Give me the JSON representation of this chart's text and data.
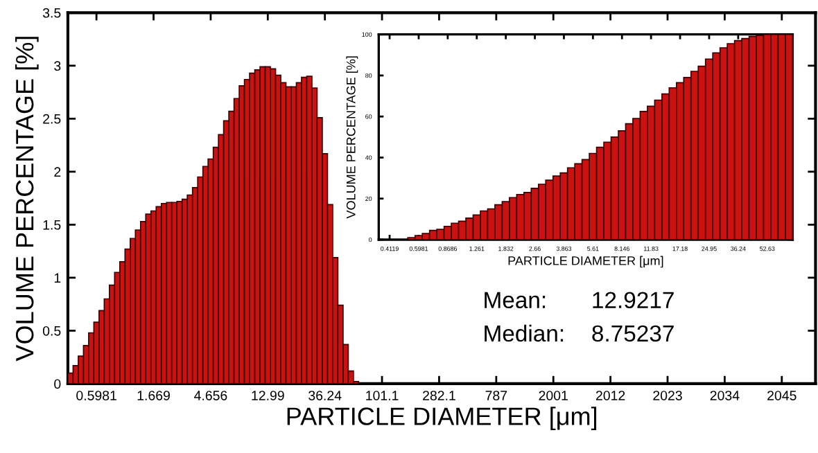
{
  "chart_data": [
    {
      "type": "bar",
      "xlabel": "PARTICLE DIAMETER [μm]",
      "ylabel": "VOLUME PERCENTAGE [%]",
      "color": "#cc1111",
      "ylim": [
        0,
        3.5
      ],
      "yticks": [
        0,
        0.5,
        1,
        1.5,
        2,
        2.5,
        3,
        3.5
      ],
      "grid": false,
      "categories": [
        null,
        null,
        null,
        null,
        null,
        "0.5981",
        null,
        null,
        null,
        null,
        null,
        null,
        null,
        null,
        null,
        null,
        "1.669",
        null,
        null,
        null,
        null,
        null,
        null,
        null,
        null,
        null,
        null,
        "4.656",
        null,
        null,
        null,
        null,
        null,
        null,
        null,
        null,
        null,
        null,
        "12.99",
        null,
        null,
        null,
        null,
        null,
        null,
        null,
        null,
        null,
        null,
        "36.24",
        null,
        null,
        null,
        null,
        null,
        null,
        null,
        null,
        null,
        null,
        "101.1",
        null,
        null,
        null,
        null,
        null,
        null,
        null,
        null,
        null,
        null,
        "282.1",
        null,
        null,
        null,
        null,
        null,
        null,
        null,
        null,
        null,
        null,
        "787",
        null,
        null,
        null,
        null,
        null,
        null,
        null,
        null,
        null,
        null,
        "2001",
        null,
        null,
        null,
        null,
        null,
        null,
        null,
        null,
        null,
        null,
        "2012",
        null,
        null,
        null,
        null,
        null,
        null,
        null,
        null,
        null,
        null,
        "2023",
        null,
        null,
        null,
        null,
        null,
        null,
        null,
        null,
        null,
        null,
        "2034",
        null,
        null,
        null,
        null,
        null,
        null,
        null,
        null,
        null,
        null,
        "2045",
        null,
        null,
        null,
        null,
        null,
        null
      ],
      "values": [
        0.1,
        0.17,
        0.26,
        0.36,
        0.48,
        0.58,
        0.69,
        0.8,
        0.93,
        1.05,
        1.15,
        1.27,
        1.37,
        1.45,
        1.53,
        1.6,
        1.63,
        1.67,
        1.7,
        1.71,
        1.71,
        1.72,
        1.74,
        1.78,
        1.85,
        1.95,
        2.05,
        2.12,
        2.23,
        2.35,
        2.48,
        2.57,
        2.69,
        2.81,
        2.87,
        2.93,
        2.96,
        2.99,
        2.99,
        2.97,
        2.91,
        2.84,
        2.8,
        2.8,
        2.84,
        2.89,
        2.9,
        2.79,
        2.51,
        2.17,
        1.69,
        1.19,
        0.74,
        0.37,
        0.12,
        0.02,
        0,
        0,
        0,
        0,
        0,
        0,
        0,
        0,
        0,
        0,
        0,
        0,
        0,
        0,
        0,
        0,
        0,
        0,
        0,
        0,
        0,
        0,
        0,
        0,
        0,
        0,
        0,
        0,
        0,
        0,
        0,
        0,
        0,
        0,
        0,
        0,
        0,
        0,
        0,
        0,
        0,
        0,
        0,
        0,
        0,
        0,
        0,
        0,
        0,
        0,
        0,
        0,
        0,
        0,
        0,
        0,
        0,
        0,
        0,
        0,
        0,
        0,
        0,
        0,
        0,
        0,
        0,
        0,
        0,
        0,
        0,
        0,
        0,
        0,
        0,
        0,
        0,
        0,
        0,
        0,
        0,
        0,
        0,
        0,
        0,
        0,
        0,
        0
      ],
      "annotations": [
        "Mean:",
        "12.9217",
        "Median:",
        "8.75237"
      ]
    },
    {
      "type": "bar",
      "xlabel": "PARTICLE DIAMETER [μm]",
      "ylabel": "VOLUME PERCENTAGE [%]",
      "color": "#cc1111",
      "ylim": [
        0,
        100
      ],
      "yticks": [
        0,
        20,
        40,
        60,
        80,
        100
      ],
      "grid": false,
      "categories": [
        null,
        "0.4119",
        null,
        null,
        null,
        "0.5981",
        null,
        null,
        null,
        "0.8686",
        null,
        null,
        null,
        "1.261",
        null,
        null,
        null,
        "1.832",
        null,
        null,
        null,
        "2.66",
        null,
        null,
        null,
        "3.863",
        null,
        null,
        null,
        "5.61",
        null,
        null,
        null,
        "8.146",
        null,
        null,
        null,
        "11.83",
        null,
        null,
        null,
        "17.18",
        null,
        null,
        null,
        "24.95",
        null,
        null,
        null,
        "36.24",
        null,
        null,
        null,
        "52.63",
        null,
        null,
        null
      ],
      "values": [
        0,
        0,
        0,
        0,
        1,
        2,
        3,
        4.5,
        5,
        6.5,
        8,
        9,
        10.5,
        12,
        14,
        15,
        17,
        18.5,
        20.5,
        22,
        23,
        25,
        27,
        29,
        31,
        32.5,
        35,
        37,
        39,
        42,
        45,
        47.5,
        50,
        53,
        56.5,
        59,
        62.5,
        65,
        68,
        71,
        74,
        76.5,
        79,
        82,
        84.5,
        88,
        91,
        93.5,
        95.5,
        97,
        98,
        99,
        99.5,
        100,
        100,
        100,
        100
      ]
    }
  ]
}
